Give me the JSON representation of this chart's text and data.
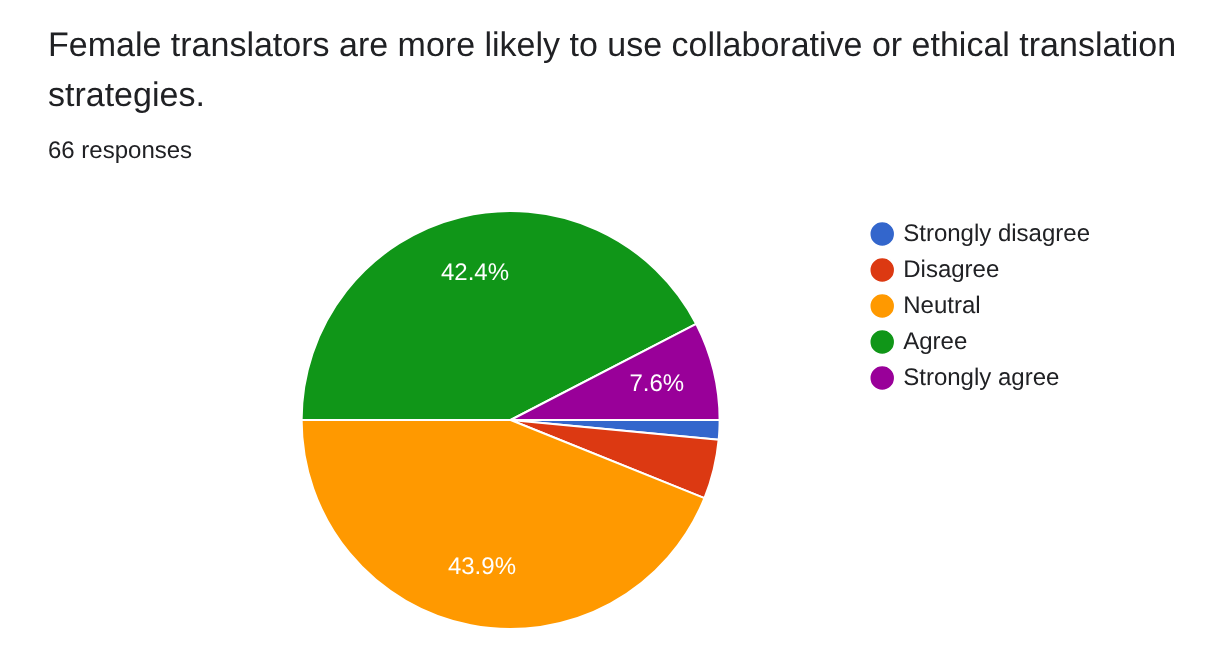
{
  "chart_data": {
    "type": "pie",
    "title": "Female translators are more likely to use collaborative or ethical translation strategies.",
    "subtitle": "66 responses",
    "categories": [
      "Strongly disagree",
      "Disagree",
      "Neutral",
      "Agree",
      "Strongly agree"
    ],
    "values": [
      1.5,
      4.6,
      43.9,
      42.4,
      7.6
    ],
    "colors": [
      "#3366cc",
      "#dc3912",
      "#ff9900",
      "#109618",
      "#990099"
    ],
    "value_labels": [
      null,
      null,
      "43.9%",
      "42.4%",
      "7.6%"
    ],
    "legend": "right"
  }
}
